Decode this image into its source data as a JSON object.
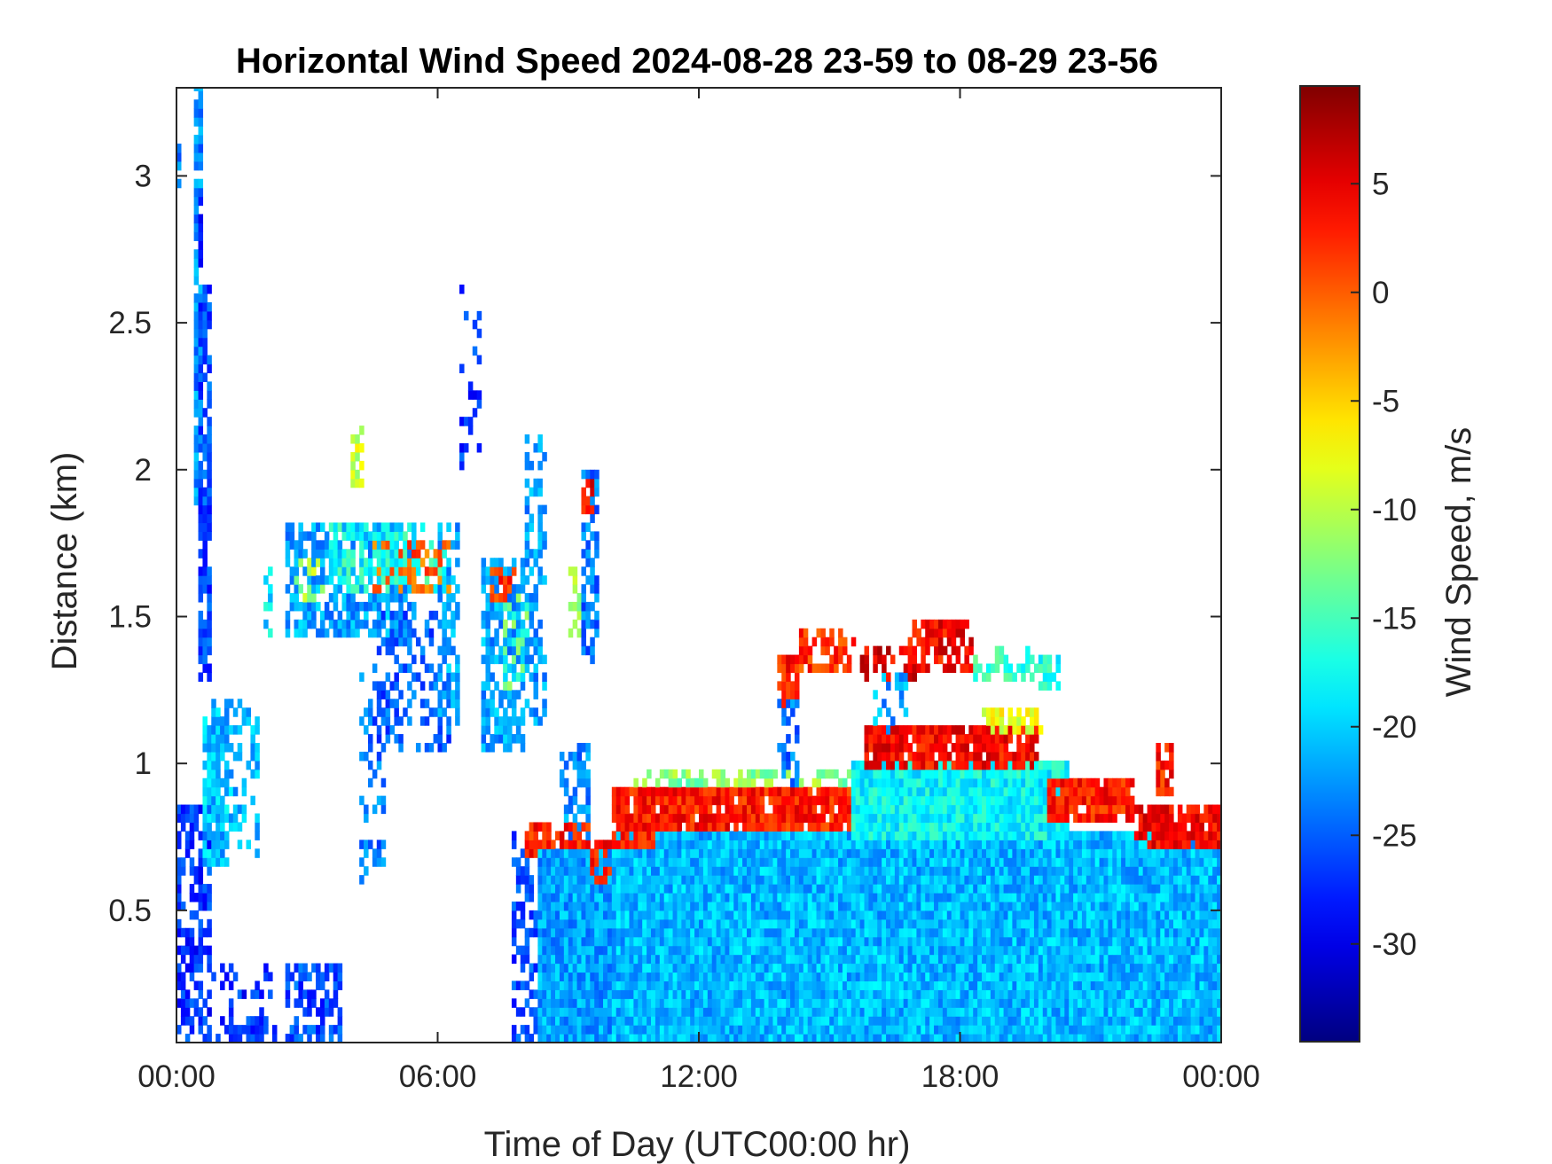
{
  "chart_data": {
    "type": "heatmap",
    "title": "Horizontal Wind Speed 2024-08-28 23-59 to 08-29 23-56",
    "xlabel": "Time of Day (UTC00:00 hr)",
    "ylabel": "Distance (km)",
    "colorbar_label": "Wind Speed, m/s",
    "colormap": "jet",
    "x_range_hours": [
      0,
      24
    ],
    "x_ticks": [
      {
        "value": 0,
        "label": "00:00"
      },
      {
        "value": 6,
        "label": "06:00"
      },
      {
        "value": 12,
        "label": "12:00"
      },
      {
        "value": 18,
        "label": "18:00"
      },
      {
        "value": 24,
        "label": "00:00"
      }
    ],
    "ylim": [
      0.05,
      3.3
    ],
    "y_ticks": [
      {
        "value": 0.5,
        "label": "0.5"
      },
      {
        "value": 1,
        "label": "1"
      },
      {
        "value": 1.5,
        "label": "1.5"
      },
      {
        "value": 2,
        "label": "2"
      },
      {
        "value": 2.5,
        "label": "2.5"
      },
      {
        "value": 3,
        "label": "3"
      }
    ],
    "clim": [
      -34.5,
      9.5
    ],
    "colorbar_ticks": [
      {
        "value": 5,
        "label": "5"
      },
      {
        "value": 0,
        "label": "0"
      },
      {
        "value": -5,
        "label": "-5"
      },
      {
        "value": -10,
        "label": "-10"
      },
      {
        "value": -15,
        "label": "-15"
      },
      {
        "value": -20,
        "label": "-20"
      },
      {
        "value": -25,
        "label": "-25"
      },
      {
        "value": -30,
        "label": "-30"
      }
    ],
    "cell_hours": 0.1,
    "cell_km": 0.03,
    "regions": [
      {
        "x": [
          0.0,
          0.1
        ],
        "y": [
          2.98,
          3.1
        ],
        "value": -24,
        "density": 0.8
      },
      {
        "x": [
          0.0,
          0.8
        ],
        "y": [
          0.05,
          0.85
        ],
        "value": -27,
        "density": 0.55
      },
      {
        "x": [
          0.45,
          0.6
        ],
        "y": [
          1.9,
          3.3
        ],
        "value": -23,
        "density": 0.85
      },
      {
        "x": [
          0.5,
          0.6
        ],
        "y": [
          2.7,
          2.95
        ],
        "value": -27,
        "density": 0.9
      },
      {
        "x": [
          0.6,
          0.8
        ],
        "y": [
          1.3,
          2.6
        ],
        "value": -26,
        "density": 0.65
      },
      {
        "x": [
          0.7,
          1.2
        ],
        "y": [
          0.65,
          1.15
        ],
        "value": -20,
        "density": 0.8
      },
      {
        "x": [
          0.8,
          1.9
        ],
        "y": [
          0.7,
          1.2
        ],
        "value": -21,
        "density": 0.4
      },
      {
        "x": [
          0.0,
          2.2
        ],
        "y": [
          0.05,
          0.3
        ],
        "value": -27,
        "density": 0.2
      },
      {
        "x": [
          1.2,
          2.3
        ],
        "y": [
          0.05,
          0.12
        ],
        "value": -27,
        "density": 0.5
      },
      {
        "x": [
          2.0,
          2.2
        ],
        "y": [
          1.45,
          1.65
        ],
        "value": -19,
        "density": 0.5
      },
      {
        "x": [
          2.5,
          3.8
        ],
        "y": [
          0.05,
          0.3
        ],
        "value": -26,
        "density": 0.6
      },
      {
        "x": [
          2.5,
          5.5
        ],
        "y": [
          1.45,
          1.8
        ],
        "value": -22,
        "density": 0.65
      },
      {
        "x": [
          2.8,
          3.4
        ],
        "y": [
          1.55,
          1.7
        ],
        "value": -11,
        "density": 0.4
      },
      {
        "x": [
          4.0,
          4.3
        ],
        "y": [
          1.95,
          2.15
        ],
        "value": -9,
        "density": 0.6
      },
      {
        "x": [
          3.5,
          6.3
        ],
        "y": [
          1.6,
          1.8
        ],
        "value": -17,
        "density": 0.55
      },
      {
        "x": [
          4.5,
          6.3
        ],
        "y": [
          1.6,
          1.75
        ],
        "value": 0,
        "density": 0.3
      },
      {
        "x": [
          4.3,
          4.8
        ],
        "y": [
          0.6,
          1.3
        ],
        "value": -24,
        "density": 0.35
      },
      {
        "x": [
          4.5,
          6.3
        ],
        "y": [
          1.05,
          1.5
        ],
        "value": -25,
        "density": 0.45
      },
      {
        "x": [
          6.0,
          6.5
        ],
        "y": [
          1.1,
          1.8
        ],
        "value": -22,
        "density": 0.55
      },
      {
        "x": [
          6.5,
          7.0
        ],
        "y": [
          2.0,
          2.6
        ],
        "value": -27,
        "density": 0.2
      },
      {
        "x": [
          7.0,
          8.0
        ],
        "y": [
          1.05,
          1.7
        ],
        "value": -22,
        "density": 0.7
      },
      {
        "x": [
          7.2,
          7.8
        ],
        "y": [
          1.55,
          1.65
        ],
        "value": 2,
        "density": 0.55
      },
      {
        "x": [
          7.6,
          8.1
        ],
        "y": [
          1.25,
          1.6
        ],
        "value": -14,
        "density": 0.4
      },
      {
        "x": [
          8.0,
          8.5
        ],
        "y": [
          1.15,
          2.1
        ],
        "value": -22,
        "density": 0.45
      },
      {
        "x": [
          7.7,
          8.3
        ],
        "y": [
          0.05,
          0.75
        ],
        "value": -26,
        "density": 0.5
      },
      {
        "x": [
          8.0,
          9.5
        ],
        "y": [
          0.7,
          0.8
        ],
        "value": 3,
        "density": 0.7
      },
      {
        "x": [
          8.3,
          10.0
        ],
        "y": [
          0.05,
          0.7
        ],
        "value": -22,
        "density": 1.0
      },
      {
        "x": [
          8.8,
          9.5
        ],
        "y": [
          0.75,
          1.05
        ],
        "value": -23,
        "density": 0.45
      },
      {
        "x": [
          9.0,
          9.3
        ],
        "y": [
          1.4,
          1.65
        ],
        "value": -11,
        "density": 0.5
      },
      {
        "x": [
          9.3,
          9.7
        ],
        "y": [
          1.35,
          2.0
        ],
        "value": -24,
        "density": 0.65
      },
      {
        "x": [
          9.3,
          9.6
        ],
        "y": [
          1.85,
          1.95
        ],
        "value": 4,
        "density": 0.7
      },
      {
        "x": [
          9.5,
          10.0
        ],
        "y": [
          0.6,
          0.72
        ],
        "value": 3,
        "density": 0.55
      },
      {
        "x": [
          10.0,
          24.0
        ],
        "y": [
          0.05,
          0.75
        ],
        "value": -21,
        "density": 1.0
      },
      {
        "x": [
          10.0,
          11.0
        ],
        "y": [
          0.72,
          0.9
        ],
        "value": 3,
        "density": 0.9
      },
      {
        "x": [
          10.5,
          15.5
        ],
        "y": [
          0.78,
          0.92
        ],
        "value": 3,
        "density": 0.9
      },
      {
        "x": [
          10.5,
          15.5
        ],
        "y": [
          0.92,
          0.97
        ],
        "value": -12,
        "density": 0.6
      },
      {
        "x": [
          13.8,
          14.3
        ],
        "y": [
          1.2,
          1.35
        ],
        "value": 3,
        "density": 0.8
      },
      {
        "x": [
          13.8,
          14.3
        ],
        "y": [
          0.95,
          1.2
        ],
        "value": -24,
        "density": 0.5
      },
      {
        "x": [
          14.3,
          15.6
        ],
        "y": [
          1.33,
          1.45
        ],
        "value": 2,
        "density": 0.55
      },
      {
        "x": [
          15.6,
          17.0
        ],
        "y": [
          1.3,
          1.4
        ],
        "value": 5,
        "density": 0.5
      },
      {
        "x": [
          16.8,
          18.3
        ],
        "y": [
          1.33,
          1.48
        ],
        "value": 4,
        "density": 0.7
      },
      {
        "x": [
          18.3,
          19.8
        ],
        "y": [
          1.3,
          1.38
        ],
        "value": -16,
        "density": 0.5
      },
      {
        "x": [
          19.8,
          20.3
        ],
        "y": [
          1.25,
          1.35
        ],
        "value": -17,
        "density": 0.5
      },
      {
        "x": [
          16.0,
          16.8
        ],
        "y": [
          0.95,
          1.3
        ],
        "value": -22,
        "density": 0.45
      },
      {
        "x": [
          15.5,
          20.5
        ],
        "y": [
          0.75,
          1.0
        ],
        "value": -18,
        "density": 1.0
      },
      {
        "x": [
          15.8,
          19.8
        ],
        "y": [
          1.0,
          1.12
        ],
        "value": 4,
        "density": 0.85
      },
      {
        "x": [
          18.5,
          20.0
        ],
        "y": [
          1.1,
          1.18
        ],
        "value": -8,
        "density": 0.7
      },
      {
        "x": [
          20.0,
          22.0
        ],
        "y": [
          0.8,
          0.95
        ],
        "value": 3,
        "density": 0.9
      },
      {
        "x": [
          22.0,
          24.0
        ],
        "y": [
          0.72,
          0.86
        ],
        "value": 4,
        "density": 0.9
      },
      {
        "x": [
          22.5,
          22.9
        ],
        "y": [
          0.9,
          1.05
        ],
        "value": 3,
        "density": 0.7
      }
    ]
  }
}
